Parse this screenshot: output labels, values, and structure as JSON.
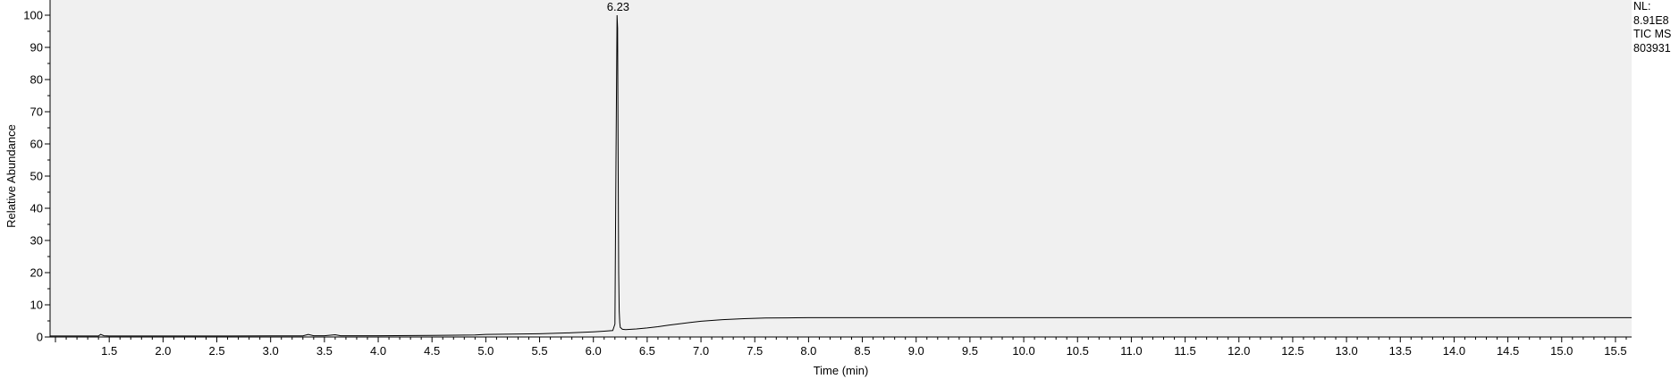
{
  "chart_data": {
    "type": "line",
    "title": "",
    "xlabel": "Time (min)",
    "ylabel": "Relative Abundance",
    "xlim": [
      0.95,
      15.65
    ],
    "ylim": [
      0,
      100
    ],
    "x_ticks": [
      1.5,
      2.0,
      2.5,
      3.0,
      3.5,
      4.0,
      4.5,
      5.0,
      5.5,
      6.0,
      6.5,
      7.0,
      7.5,
      8.0,
      8.5,
      9.0,
      9.5,
      10.0,
      10.5,
      11.0,
      11.5,
      12.0,
      12.5,
      13.0,
      13.5,
      14.0,
      14.5,
      15.0,
      15.5
    ],
    "x_tick_labels": [
      "1.5",
      "2.0",
      "2.5",
      "3.0",
      "3.5",
      "4.0",
      "4.5",
      "5.0",
      "5.5",
      "6.0",
      "6.5",
      "7.0",
      "7.5",
      "8.0",
      "8.5",
      "9.0",
      "9.5",
      "10.0",
      "10.5",
      "11.0",
      "11.5",
      "12.0",
      "12.5",
      "13.0",
      "13.5",
      "14.0",
      "14.5",
      "15.0",
      "15.5"
    ],
    "y_ticks": [
      0,
      10,
      20,
      30,
      40,
      50,
      60,
      70,
      80,
      90,
      100
    ],
    "y_tick_labels": [
      "0",
      "10",
      "20",
      "30",
      "40",
      "50",
      "60",
      "70",
      "80",
      "90",
      "100"
    ],
    "grid": false,
    "background": "#f0f0f0",
    "line_color": "#000000",
    "series": [
      {
        "x": [
          0.95,
          1.4,
          1.42,
          1.45,
          1.5,
          2.0,
          2.5,
          3.0,
          3.3,
          3.35,
          3.4,
          3.5,
          3.6,
          3.65,
          3.7,
          4.0,
          4.5,
          4.9,
          5.0,
          5.5,
          5.8,
          6.0,
          6.1,
          6.18,
          6.2,
          6.21,
          6.22,
          6.225,
          6.23,
          6.235,
          6.24,
          6.245,
          6.25,
          6.27,
          6.3,
          6.4,
          6.5,
          6.6,
          6.7,
          6.8,
          6.9,
          7.0,
          7.2,
          7.4,
          7.6,
          7.8,
          8.0,
          8.5,
          9.0,
          10.0,
          11.0,
          12.0,
          13.0,
          14.0,
          15.0,
          15.65
        ],
        "y": [
          0.3,
          0.3,
          0.8,
          0.4,
          0.3,
          0.3,
          0.3,
          0.35,
          0.35,
          0.8,
          0.4,
          0.4,
          0.7,
          0.4,
          0.4,
          0.4,
          0.5,
          0.6,
          0.8,
          1.0,
          1.3,
          1.6,
          1.8,
          2.0,
          4.0,
          55.0,
          100.0,
          96.0,
          55.0,
          20.0,
          8.0,
          4.5,
          3.0,
          2.4,
          2.3,
          2.5,
          2.8,
          3.2,
          3.7,
          4.1,
          4.5,
          4.9,
          5.4,
          5.7,
          5.9,
          5.95,
          6.0,
          6.0,
          6.0,
          6.0,
          6.0,
          6.0,
          6.0,
          6.0,
          6.0,
          6.0
        ]
      }
    ],
    "annotations": [
      {
        "x": 6.23,
        "y": 100,
        "text": "6.23"
      }
    ]
  },
  "side_info": {
    "lines": [
      "NL:",
      "8.91E8",
      "TIC  MS",
      "803931"
    ]
  }
}
